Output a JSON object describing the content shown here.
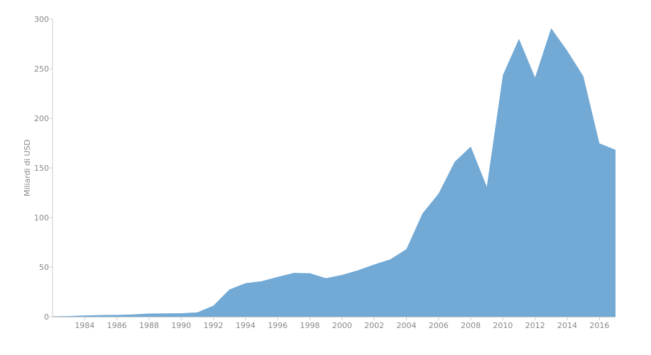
{
  "chart_data": {
    "type": "area",
    "ylabel": "Miliardi di USD",
    "xlabel": "",
    "title": "",
    "grid": false,
    "legend": "none",
    "xlim": [
      1982,
      2017
    ],
    "ylim": [
      0,
      300
    ],
    "yticks": [
      0,
      50,
      100,
      150,
      200,
      250,
      300
    ],
    "xticks": [
      1984,
      1986,
      1988,
      1990,
      1992,
      1994,
      1996,
      1998,
      2000,
      2002,
      2004,
      2006,
      2008,
      2010,
      2012,
      2014,
      2016
    ],
    "color": "#72a9d5",
    "axis_color": "#cccccc",
    "x": [
      1982,
      1983,
      1984,
      1985,
      1986,
      1987,
      1988,
      1989,
      1990,
      1991,
      1992,
      1993,
      1994,
      1995,
      1996,
      1997,
      1998,
      1999,
      2000,
      2001,
      2002,
      2003,
      2004,
      2005,
      2006,
      2007,
      2008,
      2009,
      2010,
      2011,
      2012,
      2013,
      2014,
      2015,
      2016,
      2017
    ],
    "values": [
      0.4,
      0.6,
      1.3,
      1.7,
      1.9,
      2.3,
      3.2,
      3.4,
      3.5,
      4.4,
      11.2,
      27.5,
      33.8,
      35.8,
      40.2,
      44.2,
      43.8,
      38.8,
      42.1,
      46.9,
      52.7,
      57.9,
      68.1,
      104.1,
      124.1,
      156.2,
      171.5,
      131.1,
      243.7,
      280.1,
      241.2,
      290.9,
      268.1,
      242.5,
      174.8,
      168.2
    ]
  }
}
